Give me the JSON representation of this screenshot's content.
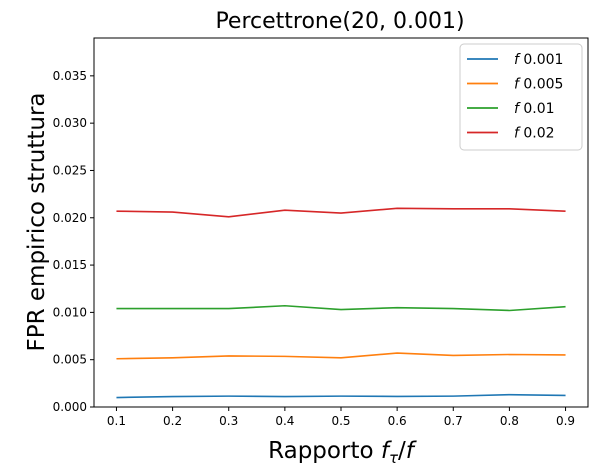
{
  "chart_data": {
    "type": "line",
    "title": "Percettrone(20, 0.001)",
    "xlabel": "Rapporto f_τ/f",
    "xlabel_parts": {
      "main": "Rapporto ",
      "f": "f",
      "sub": "τ",
      "slash": "/",
      "f2": "f"
    },
    "ylabel": "FPR empirico struttura",
    "x": [
      0.1,
      0.2,
      0.3,
      0.4,
      0.5,
      0.6,
      0.7,
      0.8,
      0.9
    ],
    "x_ticks": [
      0.1,
      0.2,
      0.3,
      0.4,
      0.5,
      0.6,
      0.7,
      0.8,
      0.9
    ],
    "x_tick_labels": [
      "0.1",
      "0.2",
      "0.3",
      "0.4",
      "0.5",
      "0.6",
      "0.7",
      "0.8",
      "0.9"
    ],
    "xlim": [
      0.06,
      0.94
    ],
    "y_ticks": [
      0.0,
      0.005,
      0.01,
      0.015,
      0.02,
      0.025,
      0.03,
      0.035
    ],
    "y_tick_labels": [
      "0.000",
      "0.005",
      "0.010",
      "0.015",
      "0.020",
      "0.025",
      "0.030",
      "0.035"
    ],
    "ylim": [
      0.0,
      0.039
    ],
    "grid": false,
    "legend_position": "top-right",
    "series": [
      {
        "name": "f 0.001",
        "legend_prefix": "f",
        "legend_value": "0.001",
        "color": "#1f77b4",
        "values": [
          0.001,
          0.0011,
          0.00115,
          0.0011,
          0.00115,
          0.00112,
          0.00115,
          0.0013,
          0.00122
        ]
      },
      {
        "name": "f 0.005",
        "legend_prefix": "f",
        "legend_value": "0.005",
        "color": "#ff7f0e",
        "values": [
          0.0051,
          0.0052,
          0.0054,
          0.00535,
          0.0052,
          0.0057,
          0.00545,
          0.00555,
          0.0055
        ]
      },
      {
        "name": "f 0.01",
        "legend_prefix": "f",
        "legend_value": "0.01",
        "color": "#2ca02c",
        "values": [
          0.0104,
          0.0104,
          0.0104,
          0.0107,
          0.0103,
          0.0105,
          0.0104,
          0.0102,
          0.0106
        ]
      },
      {
        "name": "f 0.02",
        "legend_prefix": "f",
        "legend_value": "0.02",
        "color": "#d62728",
        "values": [
          0.0207,
          0.0206,
          0.0201,
          0.0208,
          0.0205,
          0.021,
          0.02095,
          0.02095,
          0.0207
        ]
      }
    ]
  }
}
